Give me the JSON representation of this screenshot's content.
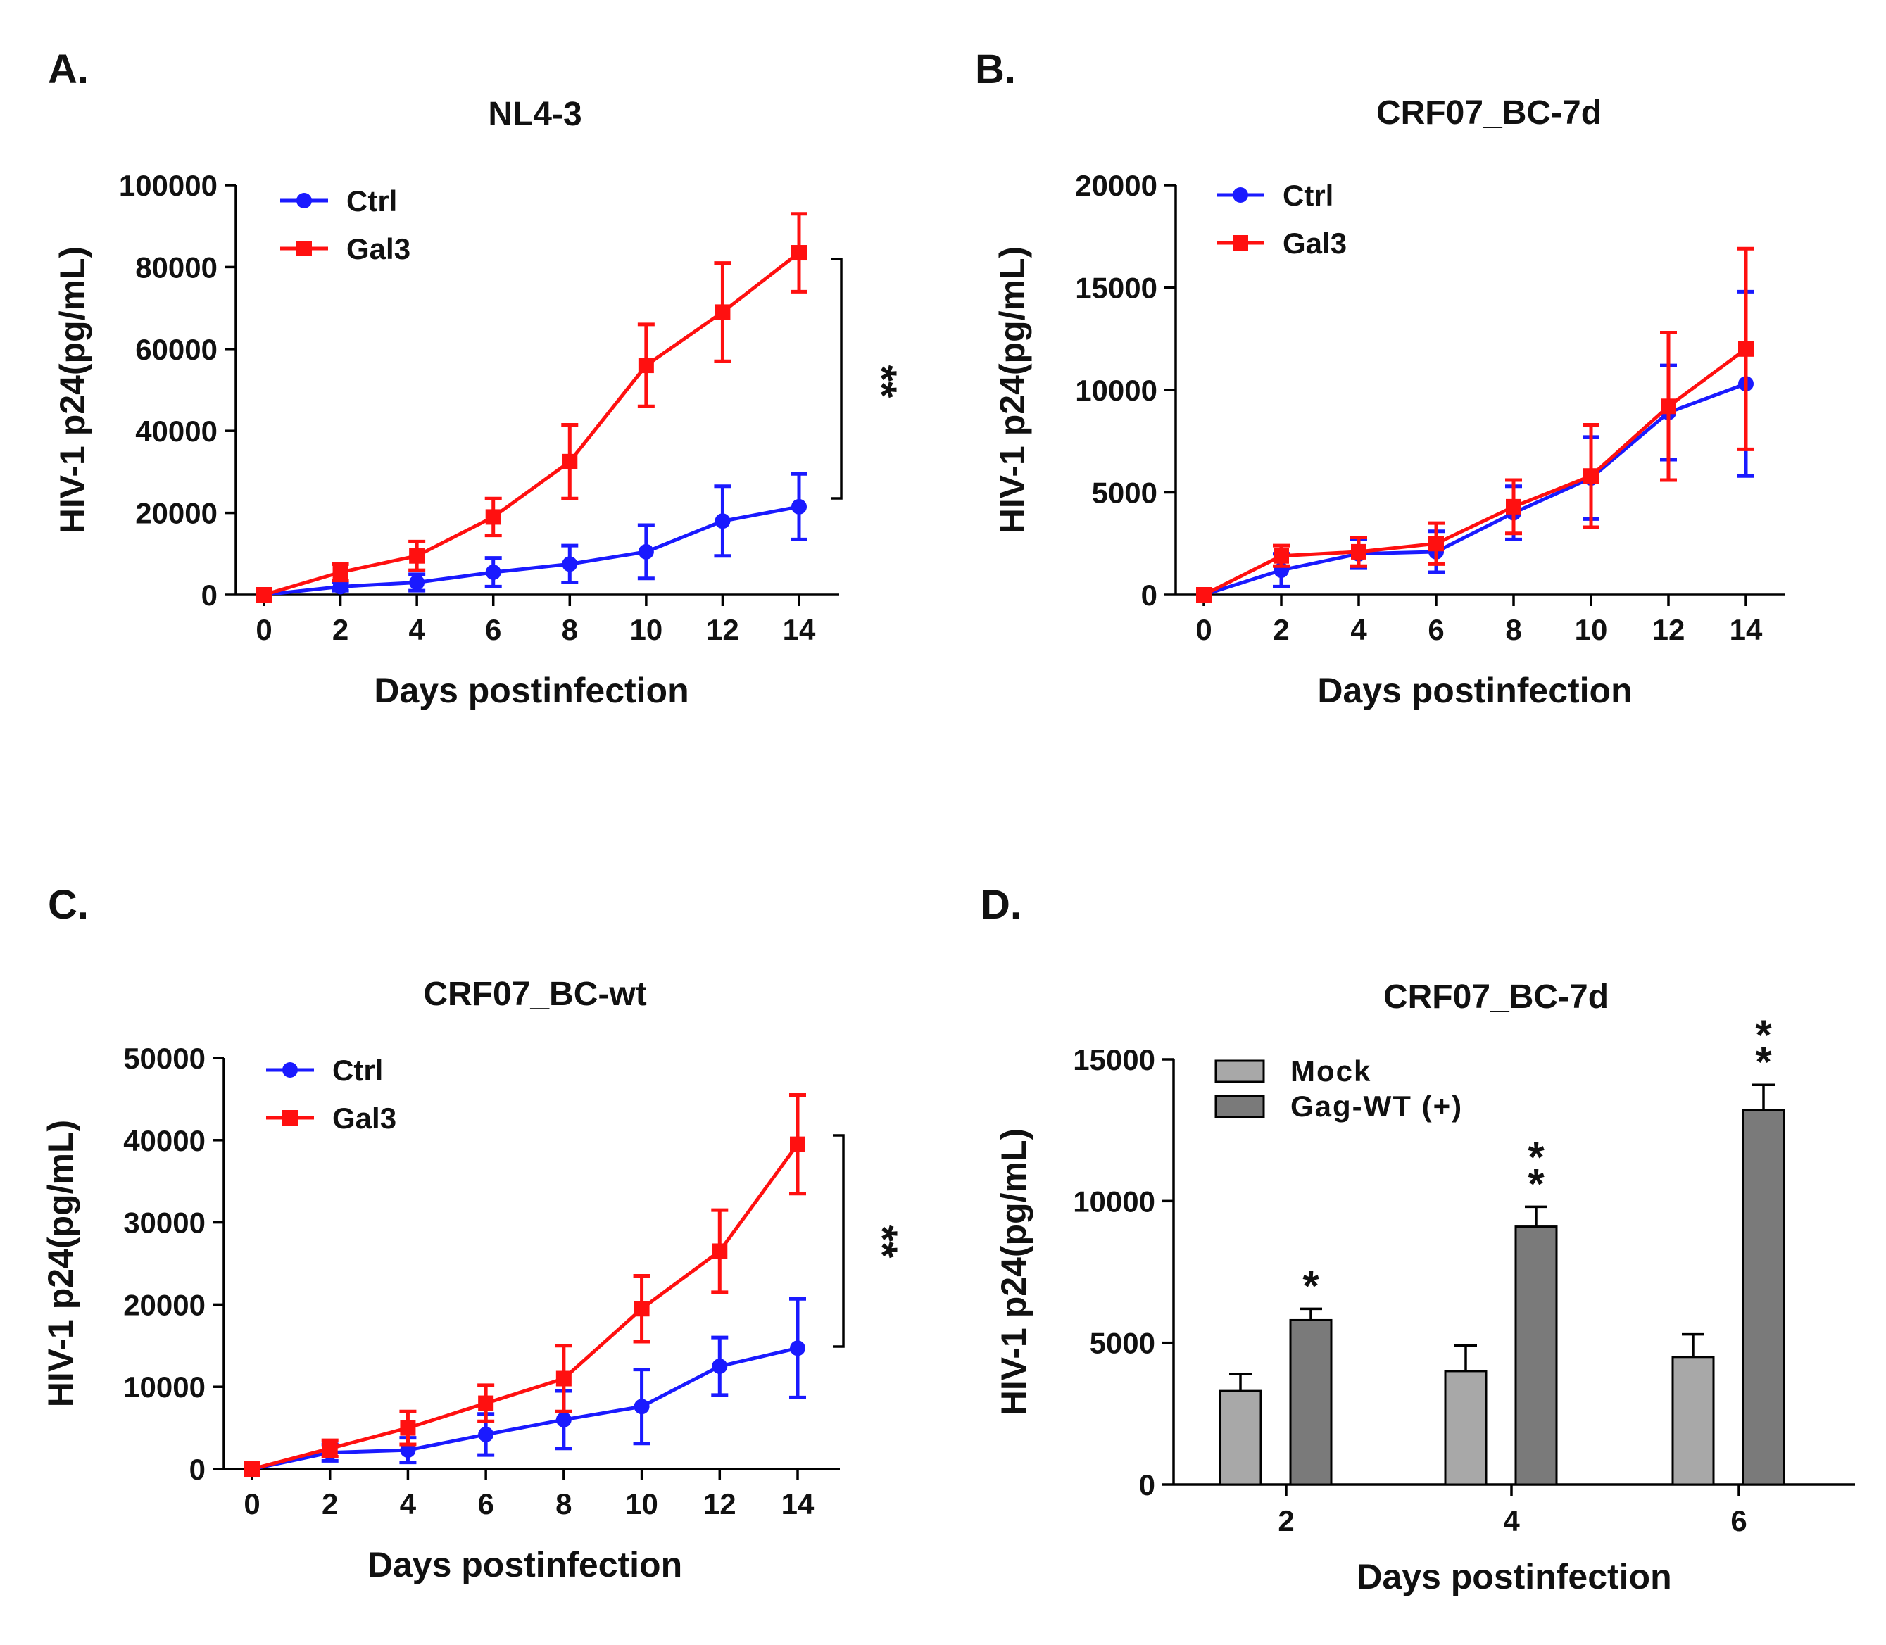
{
  "colors": {
    "ctrl": "#1a1aff",
    "gal3": "#ff1010",
    "mock": "#a8a8a8",
    "gag": "#7a7a7a",
    "axis": "#000000"
  },
  "chart_data": [
    {
      "panel": "A.",
      "type": "line",
      "title": "NL4-3",
      "xlabel": "Days postinfection",
      "ylabel": "HIV-1 p24(pg/mL)",
      "x": [
        0,
        2,
        4,
        6,
        8,
        10,
        12,
        14
      ],
      "x_ticks": [
        "0",
        "2",
        "4",
        "6",
        "8",
        "10",
        "12",
        "14"
      ],
      "y_ticks": [
        "0",
        "20000",
        "40000",
        "60000",
        "80000",
        "100000"
      ],
      "xlim": [
        0,
        14
      ],
      "ylim": [
        0,
        100000
      ],
      "legend_position": "top-left",
      "series": [
        {
          "name": "Ctrl",
          "marker": "circle",
          "values": [
            0,
            2000,
            3000,
            5500,
            7500,
            10500,
            18000,
            21500
          ],
          "errors": [
            0,
            1000,
            2000,
            3500,
            4500,
            6500,
            8500,
            8000
          ]
        },
        {
          "name": "Gal3",
          "marker": "square",
          "values": [
            0,
            5500,
            9500,
            19000,
            32500,
            56000,
            69000,
            83500
          ],
          "errors": [
            0,
            2000,
            3500,
            4500,
            9000,
            10000,
            12000,
            9500
          ]
        }
      ],
      "significance": "**"
    },
    {
      "panel": "B.",
      "type": "line",
      "title": "CRF07_BC-7d",
      "xlabel": "Days postinfection",
      "ylabel": "HIV-1 p24(pg/mL)",
      "x": [
        0,
        2,
        4,
        6,
        8,
        10,
        12,
        14
      ],
      "x_ticks": [
        "0",
        "2",
        "4",
        "6",
        "8",
        "10",
        "12",
        "14"
      ],
      "y_ticks": [
        "0",
        "5000",
        "10000",
        "15000",
        "20000"
      ],
      "xlim": [
        0,
        14
      ],
      "ylim": [
        0,
        20000
      ],
      "legend_position": "top-left",
      "series": [
        {
          "name": "Ctrl",
          "marker": "circle",
          "values": [
            0,
            1200,
            2000,
            2100,
            4000,
            5700,
            8900,
            10300
          ],
          "errors": [
            0,
            800,
            700,
            1000,
            1300,
            2000,
            2300,
            4500
          ]
        },
        {
          "name": "Gal3",
          "marker": "square",
          "values": [
            0,
            1900,
            2100,
            2500,
            4300,
            5800,
            9200,
            12000
          ],
          "errors": [
            0,
            500,
            700,
            1000,
            1300,
            2500,
            3600,
            4900
          ]
        }
      ],
      "significance": ""
    },
    {
      "panel": "C.",
      "type": "line",
      "title": "CRF07_BC-wt",
      "xlabel": "Days postinfection",
      "ylabel": "HIV-1 p24(pg/mL)",
      "x": [
        0,
        2,
        4,
        6,
        8,
        10,
        12,
        14
      ],
      "x_ticks": [
        "0",
        "2",
        "4",
        "6",
        "8",
        "10",
        "12",
        "14"
      ],
      "y_ticks": [
        "0",
        "10000",
        "20000",
        "30000",
        "40000",
        "50000"
      ],
      "xlim": [
        0,
        14
      ],
      "ylim": [
        0,
        50000
      ],
      "legend_position": "top-left",
      "series": [
        {
          "name": "Ctrl",
          "marker": "circle",
          "values": [
            0,
            2000,
            2300,
            4200,
            6000,
            7600,
            12500,
            14700
          ],
          "errors": [
            0,
            1000,
            1500,
            2500,
            3500,
            4500,
            3500,
            6000
          ]
        },
        {
          "name": "Gal3",
          "marker": "square",
          "values": [
            0,
            2500,
            5000,
            8000,
            11000,
            19500,
            26500,
            39500
          ],
          "errors": [
            0,
            1000,
            2000,
            2200,
            4000,
            4000,
            5000,
            6000
          ]
        }
      ],
      "significance": "**"
    },
    {
      "panel": "D.",
      "type": "bar",
      "title": "CRF07_BC-7d",
      "xlabel": "Days postinfection",
      "ylabel": "HIV-1 p24(pg/mL)",
      "categories": [
        "2",
        "4",
        "6"
      ],
      "y_ticks": [
        "0",
        "5000",
        "10000",
        "15000"
      ],
      "ylim": [
        0,
        15000
      ],
      "legend_position": "top-left",
      "series": [
        {
          "name": "Mock",
          "values": [
            3300,
            4000,
            4500
          ],
          "errors": [
            600,
            900,
            800
          ]
        },
        {
          "name": "Gag-WT (+)",
          "values": [
            5800,
            9100,
            13200
          ],
          "errors": [
            400,
            700,
            900
          ]
        }
      ],
      "significance": [
        "*",
        "**",
        "**"
      ]
    }
  ]
}
